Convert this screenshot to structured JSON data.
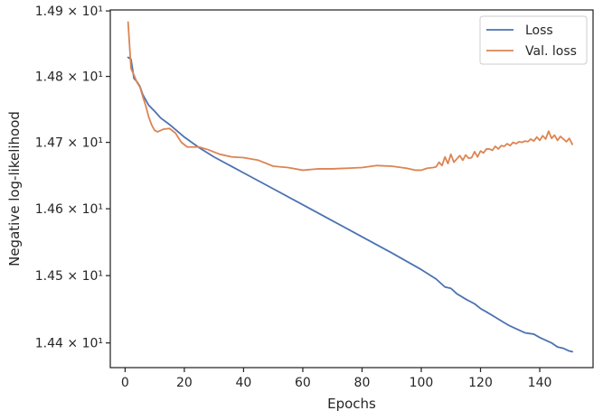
{
  "chart_data": {
    "type": "line",
    "title": "",
    "xlabel": "Epochs",
    "ylabel": "Negative log-likelihood",
    "xlim": [
      -5,
      158
    ],
    "ylim": [
      14.3635,
      14.9015
    ],
    "yscale": "log",
    "grid": false,
    "legend_placement": "top-right",
    "x_ticks": [
      0,
      20,
      40,
      60,
      80,
      100,
      120,
      140
    ],
    "y_ticks": [
      {
        "value": 14.4,
        "label": "1.44 × 10¹"
      },
      {
        "value": 14.5,
        "label": "1.45 × 10¹"
      },
      {
        "value": 14.6,
        "label": "1.46 × 10¹"
      },
      {
        "value": 14.7,
        "label": "1.47 × 10¹"
      },
      {
        "value": 14.8,
        "label": "1.48 × 10¹"
      },
      {
        "value": 14.9,
        "label": "1.49 × 10¹"
      }
    ],
    "series": [
      {
        "name": "Loss",
        "color": "#4c72b0",
        "x": [
          1,
          2,
          3,
          4,
          5,
          6,
          7,
          8,
          10,
          12,
          15,
          20,
          25,
          30,
          40,
          50,
          60,
          70,
          80,
          90,
          100,
          105,
          108,
          110,
          112,
          115,
          118,
          120,
          122,
          125,
          128,
          130,
          132,
          135,
          138,
          140,
          142,
          144,
          146,
          148,
          150,
          151
        ],
        "y": [
          14.829,
          14.826,
          14.797,
          14.792,
          14.785,
          14.772,
          14.764,
          14.756,
          14.747,
          14.737,
          14.727,
          14.708,
          14.692,
          14.678,
          14.654,
          14.63,
          14.606,
          14.582,
          14.558,
          14.534,
          14.509,
          14.495,
          14.483,
          14.481,
          14.473,
          14.465,
          14.458,
          14.451,
          14.446,
          14.438,
          14.43,
          14.425,
          14.421,
          14.415,
          14.413,
          14.408,
          14.404,
          14.4,
          14.394,
          14.392,
          14.388,
          14.387
        ]
      },
      {
        "name": "Val. loss",
        "color": "#dd8452",
        "x": [
          1,
          2,
          3,
          4,
          5,
          6,
          7,
          8,
          9,
          10,
          11,
          12,
          13,
          15,
          17,
          19,
          21,
          23,
          25,
          28,
          32,
          36,
          40,
          45,
          50,
          55,
          60,
          65,
          70,
          75,
          80,
          85,
          90,
          95,
          98,
          100,
          102,
          104,
          105,
          106,
          107,
          108,
          109,
          110,
          111,
          112,
          113,
          114,
          115,
          116,
          117,
          118,
          119,
          120,
          121,
          122,
          123,
          124,
          125,
          126,
          127,
          128,
          129,
          130,
          131,
          132,
          133,
          134,
          135,
          136,
          137,
          138,
          139,
          140,
          141,
          142,
          143,
          144,
          145,
          146,
          147,
          148,
          149,
          150,
          151
        ],
        "y": [
          14.883,
          14.812,
          14.802,
          14.791,
          14.784,
          14.769,
          14.755,
          14.738,
          14.726,
          14.718,
          14.716,
          14.718,
          14.72,
          14.721,
          14.714,
          14.7,
          14.693,
          14.693,
          14.693,
          14.689,
          14.682,
          14.678,
          14.677,
          14.673,
          14.664,
          14.662,
          14.658,
          14.66,
          14.66,
          14.661,
          14.662,
          14.665,
          14.664,
          14.661,
          14.658,
          14.658,
          14.661,
          14.662,
          14.663,
          14.67,
          14.665,
          14.678,
          14.668,
          14.682,
          14.67,
          14.675,
          14.68,
          14.673,
          14.681,
          14.676,
          14.677,
          14.686,
          14.678,
          14.687,
          14.684,
          14.69,
          14.69,
          14.688,
          14.694,
          14.69,
          14.695,
          14.694,
          14.698,
          14.695,
          14.7,
          14.698,
          14.701,
          14.7,
          14.702,
          14.701,
          14.705,
          14.702,
          14.708,
          14.703,
          14.71,
          14.705,
          14.717,
          14.706,
          14.711,
          14.703,
          14.709,
          14.705,
          14.701,
          14.706,
          14.697
        ]
      }
    ]
  }
}
